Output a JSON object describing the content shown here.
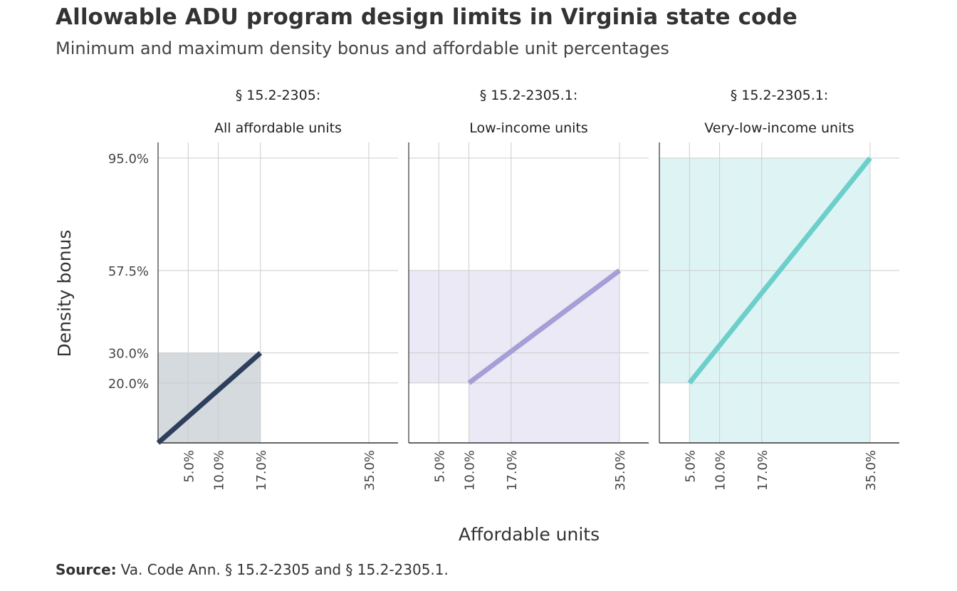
{
  "title": "Allowable ADU program design limits in Virginia state code",
  "subtitle": "Minimum and maximum density bonus and affordable unit percentages",
  "source_label": "Source:",
  "source_text": "Va. Code Ann. § 15.2-2305 and § 15.2-2305.1.",
  "chart_data": {
    "type": "line",
    "xlabel": "Affordable units",
    "ylabel": "Density bonus",
    "xlim": [
      0,
      0.39
    ],
    "ylim": [
      0,
      1.0
    ],
    "x_ticks": [
      0.05,
      0.1,
      0.17,
      0.35
    ],
    "x_tick_labels": [
      "5.0%",
      "10.0%",
      "17.0%",
      "35.0%"
    ],
    "y_ticks": [
      0.2,
      0.3,
      0.575,
      0.95
    ],
    "y_tick_labels": [
      "20.0%",
      "30.0%",
      "57.5%",
      "95.0%"
    ],
    "grid": true,
    "facets": [
      {
        "label_line1": "§ 15.2-2305:",
        "label_line2": "All affordable units",
        "color": "#2e3f5c",
        "fill": "#d5dade",
        "rect": {
          "x0": 0.0,
          "x1": 0.17,
          "y0": 0.0,
          "y1": 0.3
        },
        "line": {
          "x": [
            0.0,
            0.17
          ],
          "y": [
            0.0,
            0.3
          ]
        }
      },
      {
        "label_line1": "§ 15.2-2305.1:",
        "label_line2": "Low-income units",
        "color": "#a59fd6",
        "fill": "#ebe9f6",
        "rect": {
          "x0": 0.0,
          "x1": 0.35,
          "y0": 0.2,
          "y1": 0.575
        },
        "rect2": {
          "x0": 0.1,
          "x1": 0.35,
          "y0": 0.0,
          "y1": 0.2
        },
        "line": {
          "x": [
            0.1,
            0.35
          ],
          "y": [
            0.2,
            0.575
          ]
        }
      },
      {
        "label_line1": "§ 15.2-2305.1:",
        "label_line2": "Very-low-income units",
        "color": "#6ccfca",
        "fill": "#def4f4",
        "rect": {
          "x0": 0.0,
          "x1": 0.35,
          "y0": 0.2,
          "y1": 0.95
        },
        "rect2": {
          "x0": 0.05,
          "x1": 0.35,
          "y0": 0.0,
          "y1": 0.2
        },
        "line": {
          "x": [
            0.05,
            0.35
          ],
          "y": [
            0.2,
            0.95
          ]
        }
      }
    ]
  }
}
